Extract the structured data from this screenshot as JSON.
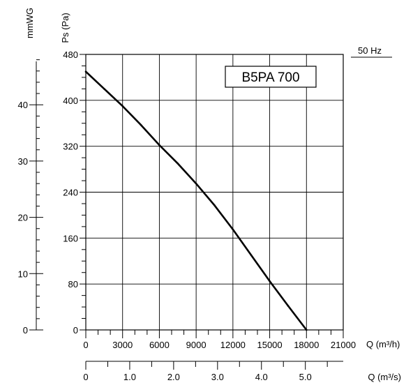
{
  "chart_data": {
    "type": "line",
    "model_label": "B5PA 700",
    "frequency_label": "50 Hz",
    "ylabel": "Ps (Pa)",
    "ylabel_secondary": "mmWG",
    "xlabel": "Q (m³/h)",
    "xlabel_secondary": "Q (m³/s)",
    "xlim": [
      0,
      21000
    ],
    "ylim": [
      0,
      480
    ],
    "x_ticks": [
      0,
      3000,
      6000,
      9000,
      12000,
      15000,
      18000,
      21000
    ],
    "x_tick_labels": [
      "0",
      "3000",
      "6000",
      "9000",
      "12000",
      "15000",
      "18000",
      "21000"
    ],
    "y_ticks": [
      0,
      80,
      160,
      240,
      320,
      400,
      480
    ],
    "y_tick_labels": [
      "0",
      "80",
      "160",
      "240",
      "320",
      "400",
      "480"
    ],
    "y2_ticks": [
      0,
      10,
      20,
      30,
      40
    ],
    "y2_tick_labels": [
      "0",
      "10",
      "20",
      "30",
      "40"
    ],
    "x2_ticks": [
      0,
      1.0,
      2.0,
      3.0,
      4.0,
      5.0
    ],
    "x2_tick_labels": [
      "0",
      "1.0",
      "2.0",
      "3.0",
      "4.0",
      "5.0"
    ],
    "grid": true,
    "series": [
      {
        "x": [
          0,
          1500,
          3000,
          4500,
          6000,
          7500,
          9000,
          10500,
          12000,
          13500,
          15000,
          16500,
          18000
        ],
        "y": [
          450,
          420,
          390,
          357,
          322,
          290,
          255,
          217,
          175,
          130,
          85,
          42,
          0
        ],
        "color": "#000000"
      }
    ]
  }
}
